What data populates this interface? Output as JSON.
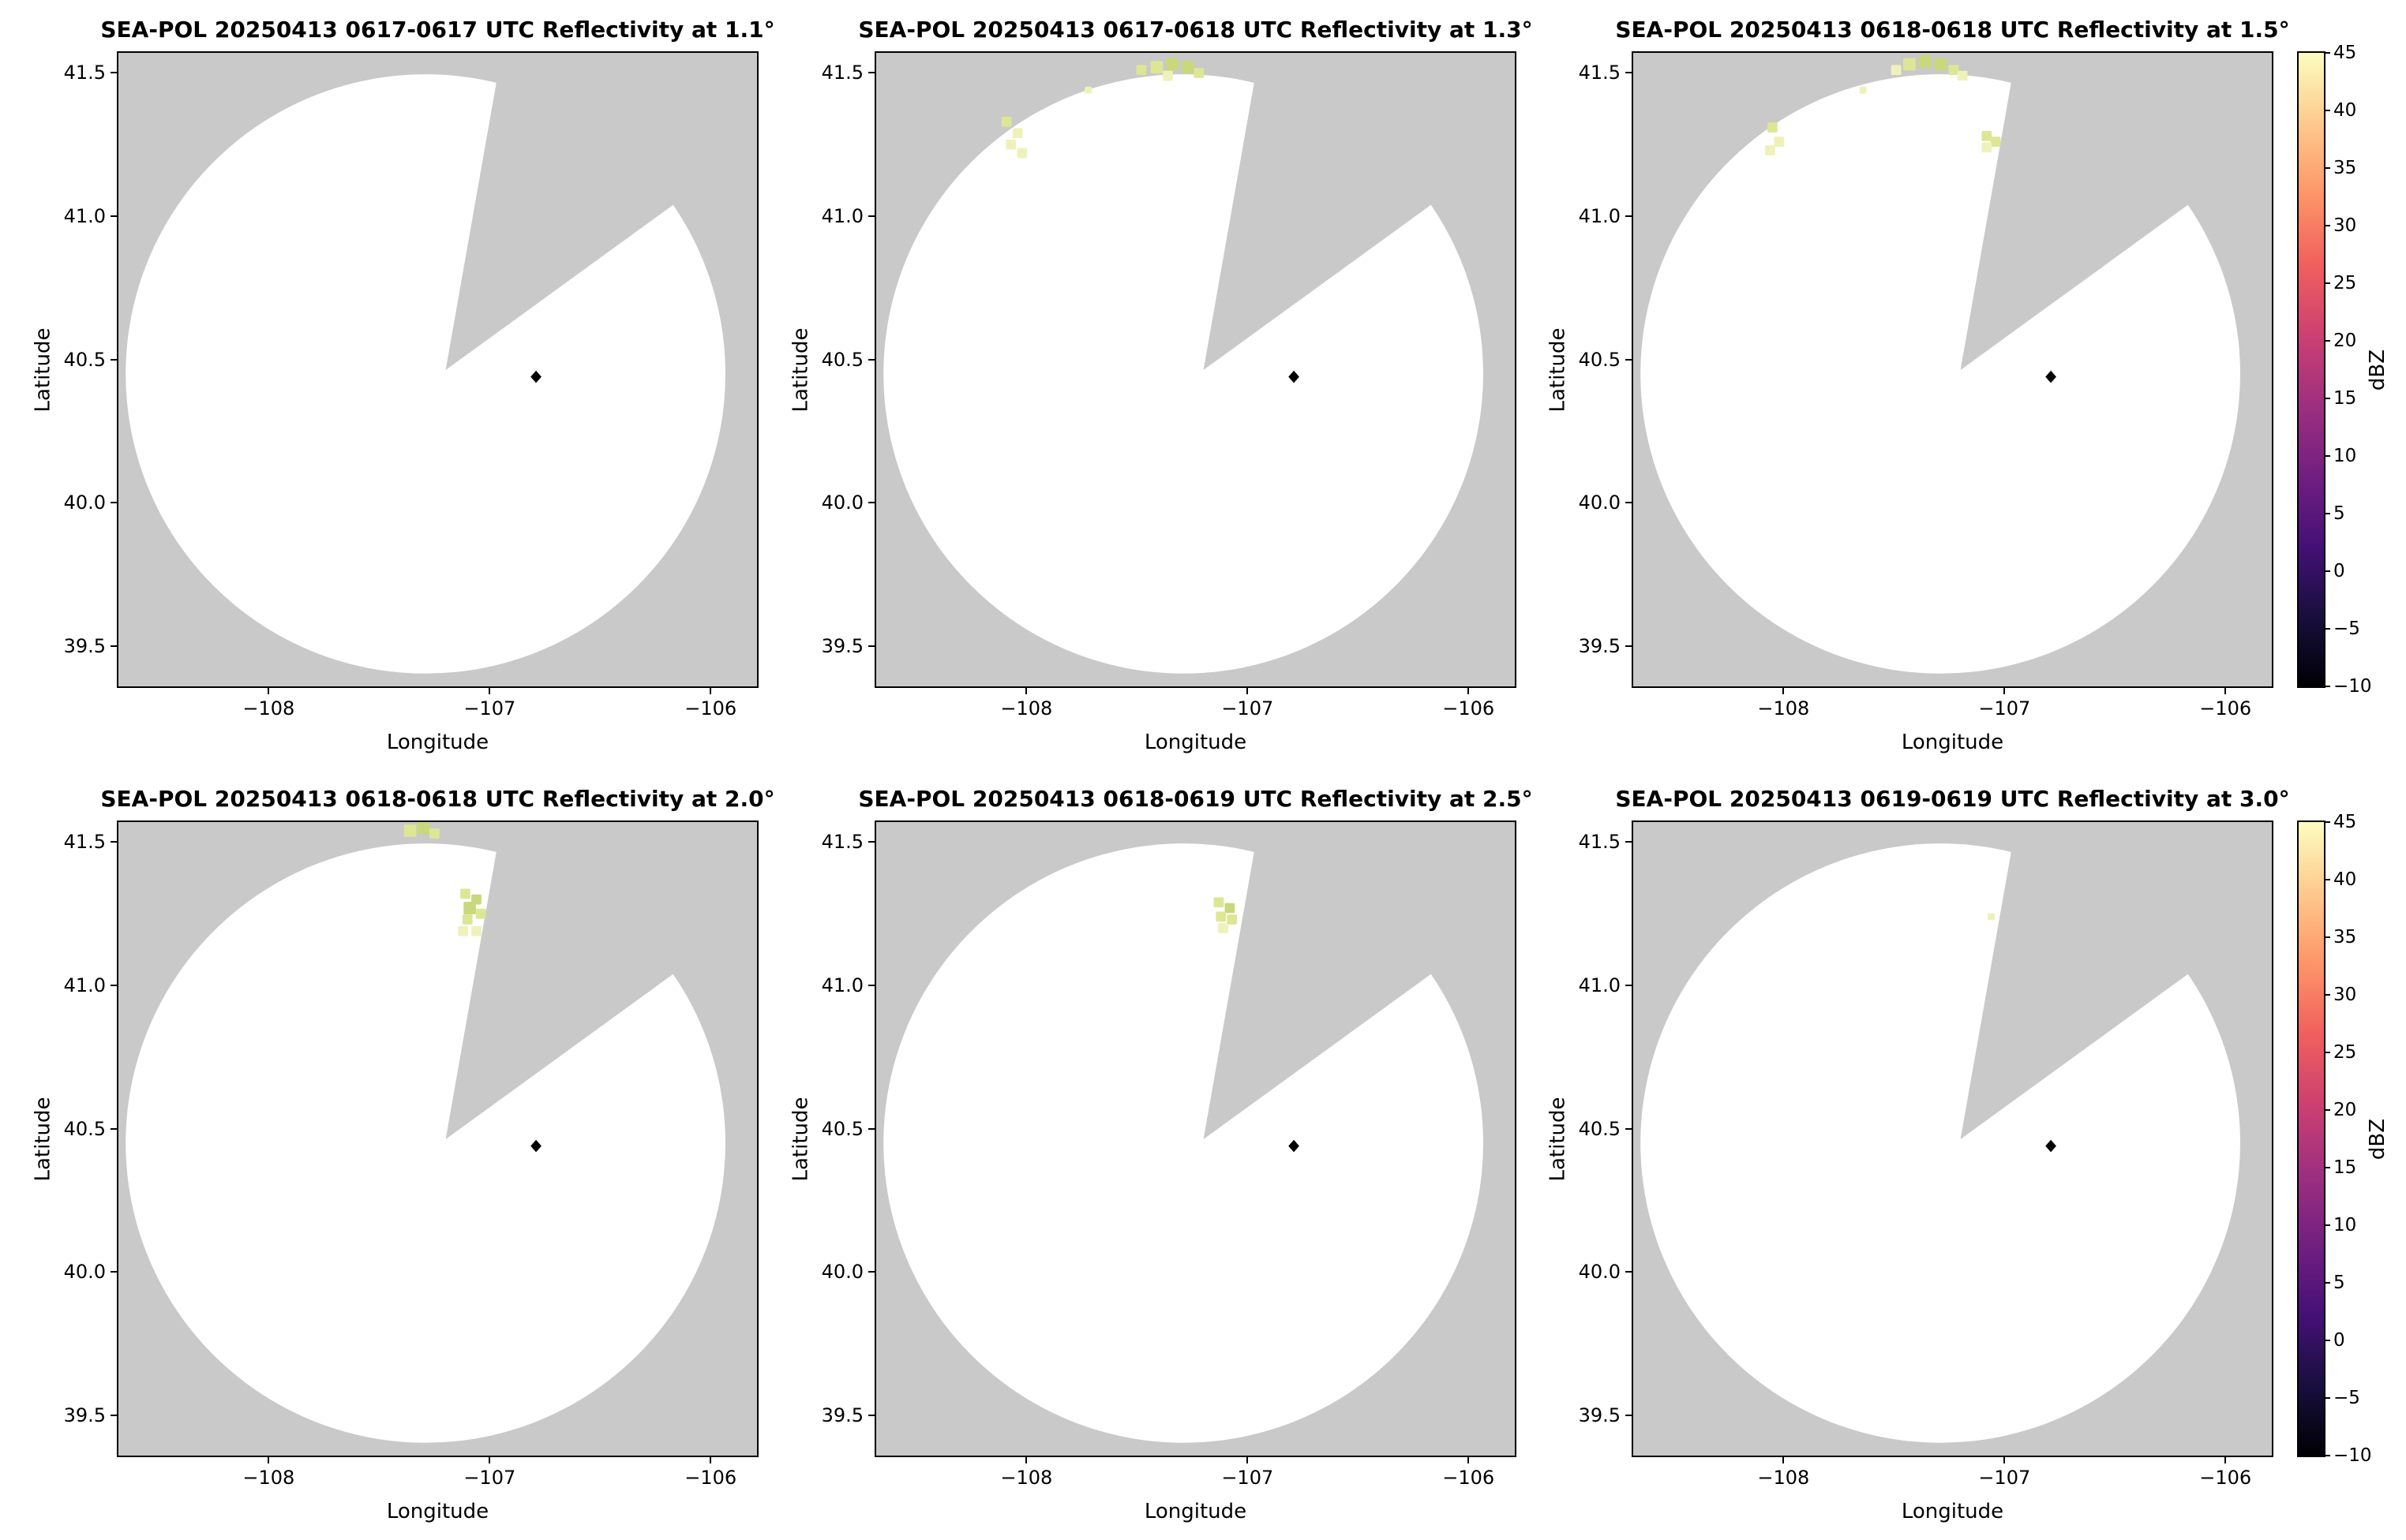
{
  "figure_background": "#ffffff",
  "colors": {
    "outside_scan": "#c9c9c9",
    "scan_area": "#ffffff",
    "marker": "#000000"
  },
  "echo_palette": [
    {
      "min": 20,
      "color": "#c9d87a"
    },
    {
      "min": 14,
      "color": "#dde695"
    },
    {
      "min": -10,
      "color": "#eef2ba"
    }
  ],
  "axes": {
    "xlabel": "Longitude",
    "ylabel": "Latitude",
    "xlim": [
      -108.68,
      -105.79
    ],
    "ylim": [
      39.36,
      41.57
    ],
    "x_ticks": [
      -108,
      -107,
      -106
    ],
    "y_ticks": [
      41.5,
      41.0,
      40.5,
      40.0,
      39.5
    ]
  },
  "scan": {
    "center_lon": -107.29,
    "center_lat": 40.45,
    "radius_lon_deg": 1.357,
    "blocked_sector_az_deg": [
      10,
      54
    ]
  },
  "radar_marker": {
    "lon": -106.79,
    "lat": 40.44
  },
  "colorbar": {
    "label": "dBZ",
    "vmin": -10,
    "vmax": 45,
    "tick_values": [
      45,
      40,
      35,
      30,
      25,
      20,
      15,
      10,
      5,
      0,
      -5,
      -10
    ],
    "colors_bottom_to_top": [
      "#000004",
      "#180f3e",
      "#451077",
      "#721f81",
      "#9e2f7f",
      "#cd4071",
      "#f1605d",
      "#fd9668",
      "#fec98d",
      "#fcfdbf"
    ]
  },
  "chart_data": [
    {
      "type": "heatmap",
      "title": "SEA-POL 20250413 0617-0617 UTC Reflectivity at 1.1°",
      "time_utc": "0617-0617",
      "elevation_deg": 1.1,
      "xlabel": "Longitude",
      "ylabel": "Latitude",
      "echoes": []
    },
    {
      "type": "heatmap",
      "title": "SEA-POL 20250413 0617-0618 UTC Reflectivity at 1.3°",
      "time_utc": "0617-0618",
      "elevation_deg": 1.3,
      "xlabel": "Longitude",
      "ylabel": "Latitude",
      "echoes": [
        [
          -108.09,
          41.33,
          15
        ],
        [
          -108.04,
          41.29,
          12
        ],
        [
          -108.07,
          41.25,
          12
        ],
        [
          -108.02,
          41.22,
          10
        ],
        [
          -107.48,
          41.51,
          15
        ],
        [
          -107.41,
          41.52,
          18,
          16
        ],
        [
          -107.34,
          41.53,
          22,
          16
        ],
        [
          -107.27,
          41.52,
          20,
          16
        ],
        [
          -107.22,
          41.5,
          15
        ],
        [
          -107.36,
          41.49,
          12
        ],
        [
          -107.72,
          41.44,
          10,
          9
        ]
      ]
    },
    {
      "type": "heatmap",
      "title": "SEA-POL 20250413 0618-0618 UTC Reflectivity at 1.5°",
      "time_utc": "0618-0618",
      "elevation_deg": 1.5,
      "xlabel": "Longitude",
      "ylabel": "Latitude",
      "echoes": [
        [
          -108.05,
          41.31,
          15
        ],
        [
          -108.02,
          41.26,
          12
        ],
        [
          -108.06,
          41.23,
          10
        ],
        [
          -107.49,
          41.51,
          12
        ],
        [
          -107.43,
          41.53,
          18,
          16
        ],
        [
          -107.36,
          41.54,
          22,
          16
        ],
        [
          -107.29,
          41.53,
          20,
          16
        ],
        [
          -107.23,
          41.51,
          15
        ],
        [
          -107.19,
          41.49,
          12
        ],
        [
          -107.64,
          41.44,
          10,
          9
        ],
        [
          -107.08,
          41.28,
          18
        ],
        [
          -107.04,
          41.26,
          15
        ],
        [
          -107.08,
          41.24,
          12
        ]
      ]
    },
    {
      "type": "heatmap",
      "title": "SEA-POL 20250413 0618-0618 UTC Reflectivity at 2.0°",
      "time_utc": "0618-0618",
      "elevation_deg": 2.0,
      "xlabel": "Longitude",
      "ylabel": "Latitude",
      "echoes": [
        [
          -107.36,
          41.54,
          18,
          16
        ],
        [
          -107.3,
          41.55,
          20,
          16
        ],
        [
          -107.25,
          41.53,
          15
        ],
        [
          -107.11,
          41.32,
          15
        ],
        [
          -107.06,
          41.3,
          20
        ],
        [
          -107.09,
          41.27,
          22,
          16
        ],
        [
          -107.04,
          41.25,
          18
        ],
        [
          -107.1,
          41.23,
          15
        ],
        [
          -107.06,
          41.19,
          12
        ],
        [
          -107.12,
          41.19,
          12
        ]
      ]
    },
    {
      "type": "heatmap",
      "title": "SEA-POL 20250413 0618-0619 UTC Reflectivity at 2.5°",
      "time_utc": "0618-0619",
      "elevation_deg": 2.5,
      "xlabel": "Longitude",
      "ylabel": "Latitude",
      "echoes": [
        [
          -107.13,
          41.29,
          15
        ],
        [
          -107.08,
          41.27,
          20
        ],
        [
          -107.12,
          41.24,
          18
        ],
        [
          -107.07,
          41.23,
          15
        ],
        [
          -107.11,
          41.2,
          12
        ]
      ]
    },
    {
      "type": "heatmap",
      "title": "SEA-POL 20250413 0619-0619 UTC Reflectivity at 3.0°",
      "time_utc": "0619-0619",
      "elevation_deg": 3.0,
      "xlabel": "Longitude",
      "ylabel": "Latitude",
      "echoes": [
        [
          -107.06,
          41.24,
          12,
          9
        ]
      ]
    }
  ]
}
